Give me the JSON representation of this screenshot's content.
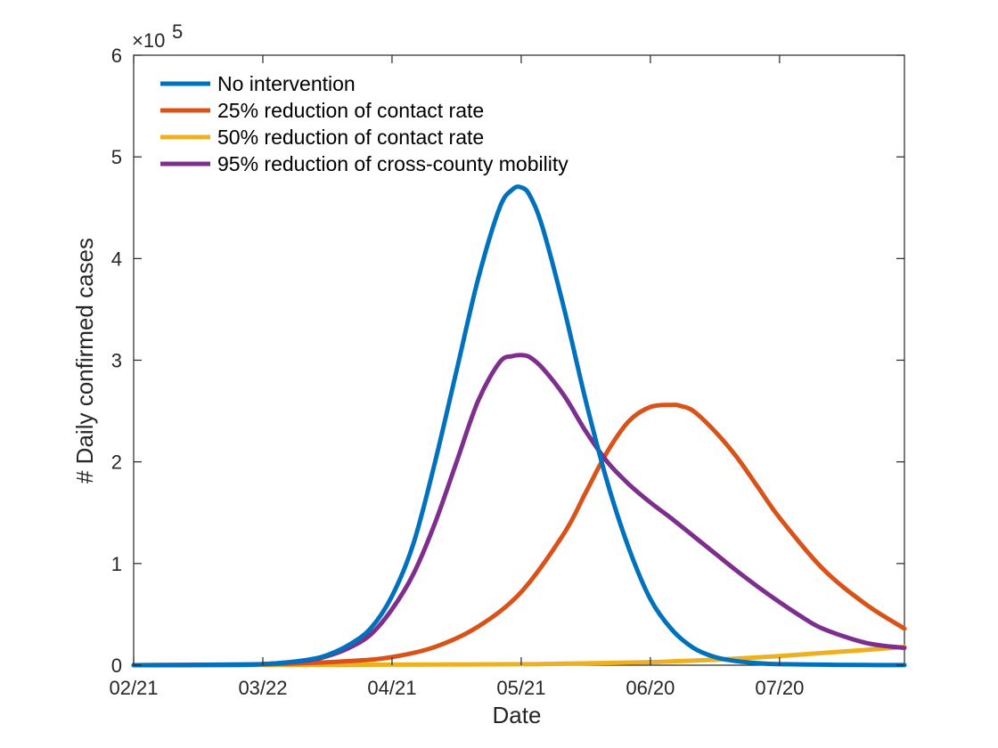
{
  "chart_data": {
    "type": "line",
    "title": "",
    "xlabel": "Date",
    "ylabel": "# Daily confirmed cases",
    "y_exponent_label": "×10",
    "y_exponent_power": "5",
    "x_tick_labels": [
      "02/21",
      "03/22",
      "04/21",
      "05/21",
      "06/20",
      "07/20"
    ],
    "x_tick_days": [
      0,
      30,
      60,
      90,
      120,
      150
    ],
    "xlim": [
      0,
      179
    ],
    "y_tick_labels": [
      "0",
      "1",
      "2",
      "3",
      "4",
      "5",
      "6"
    ],
    "y_ticks": [
      0,
      1,
      2,
      3,
      4,
      5,
      6
    ],
    "ylim": [
      0,
      6
    ],
    "y_scale_note": "values in units of 10^5",
    "grid": false,
    "box": true,
    "legend_position": "top-left",
    "series": [
      {
        "name": "No intervention",
        "color": "#0072BD",
        "x": [
          0,
          20,
          30,
          40,
          45,
          50,
          55,
          60,
          65,
          70,
          75,
          80,
          85,
          88,
          90,
          92,
          95,
          100,
          105,
          110,
          115,
          120,
          125,
          130,
          135,
          140,
          145,
          150,
          160,
          170,
          179
        ],
        "y": [
          0,
          0.003,
          0.01,
          0.05,
          0.1,
          0.2,
          0.36,
          0.68,
          1.2,
          2.0,
          2.9,
          3.8,
          4.5,
          4.68,
          4.7,
          4.62,
          4.3,
          3.5,
          2.6,
          1.8,
          1.15,
          0.65,
          0.35,
          0.17,
          0.08,
          0.04,
          0.02,
          0.01,
          0.005,
          0.002,
          0.001
        ]
      },
      {
        "name": "25% reduction of contact rate",
        "color": "#D95319",
        "x": [
          0,
          30,
          50,
          60,
          70,
          80,
          90,
          100,
          105,
          110,
          115,
          120,
          125,
          127,
          130,
          135,
          140,
          145,
          150,
          160,
          170,
          179
        ],
        "y": [
          0,
          0.01,
          0.04,
          0.08,
          0.18,
          0.38,
          0.72,
          1.3,
          1.7,
          2.1,
          2.4,
          2.54,
          2.56,
          2.55,
          2.5,
          2.3,
          2.05,
          1.75,
          1.45,
          0.95,
          0.6,
          0.36
        ]
      },
      {
        "name": "50% reduction of contact rate",
        "color": "#EDB120",
        "x": [
          0,
          30,
          60,
          90,
          100,
          110,
          120,
          130,
          140,
          150,
          160,
          170,
          179
        ],
        "y": [
          0,
          0.002,
          0.005,
          0.01,
          0.015,
          0.022,
          0.03,
          0.045,
          0.065,
          0.09,
          0.12,
          0.15,
          0.18
        ]
      },
      {
        "name": "95% reduction of cross-county mobility",
        "color": "#7E2F8E",
        "x": [
          0,
          20,
          30,
          40,
          45,
          50,
          55,
          60,
          65,
          70,
          75,
          80,
          85,
          88,
          90,
          92,
          95,
          100,
          105,
          110,
          115,
          120,
          125,
          130,
          135,
          140,
          145,
          150,
          155,
          160,
          170,
          179
        ],
        "y": [
          0,
          0.003,
          0.01,
          0.045,
          0.09,
          0.17,
          0.3,
          0.55,
          0.9,
          1.4,
          2.0,
          2.6,
          2.98,
          3.04,
          3.05,
          3.03,
          2.92,
          2.65,
          2.3,
          2.0,
          1.78,
          1.6,
          1.44,
          1.27,
          1.1,
          0.93,
          0.77,
          0.62,
          0.48,
          0.36,
          0.22,
          0.17
        ]
      }
    ]
  }
}
